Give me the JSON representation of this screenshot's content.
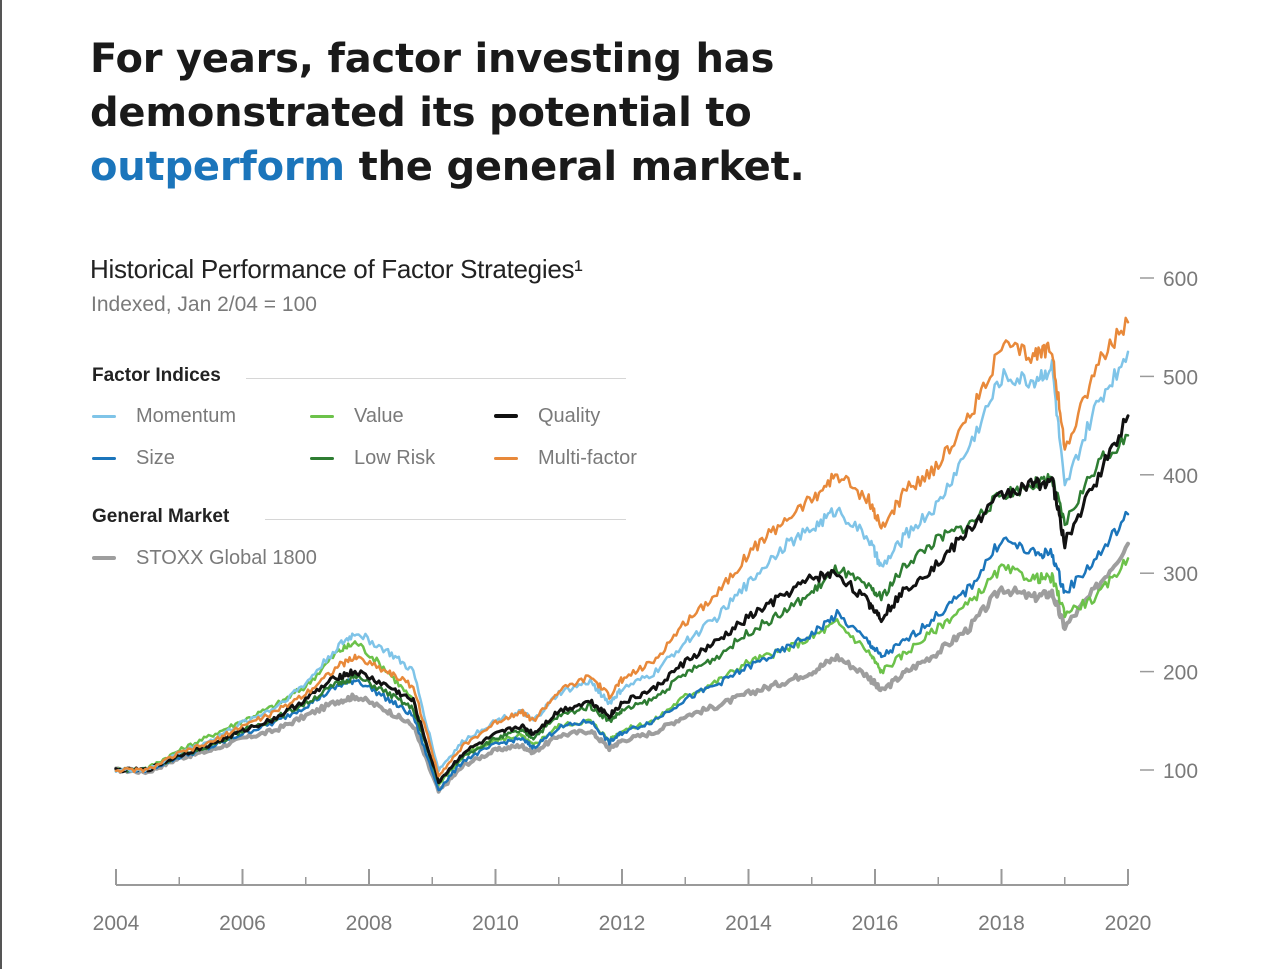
{
  "headline": {
    "line1": "For years, factor investing has",
    "line2": "demonstrated its potential to",
    "accent": "outperform",
    "rest": " the general market."
  },
  "legend": {
    "factor_heading": "Factor Indices",
    "market_heading": "General Market"
  },
  "chart_data": {
    "type": "line",
    "title": "Historical Performance of Factor Strategies¹",
    "subtitle": "Indexed, Jan 2/04 = 100",
    "xlabel": "",
    "ylabel": "",
    "xlim": [
      2004,
      2020
    ],
    "ylim": [
      100,
      600
    ],
    "y_ticks": [
      100,
      200,
      300,
      400,
      500,
      600
    ],
    "x_ticks": [
      2004,
      2006,
      2008,
      2010,
      2012,
      2014,
      2016,
      2018,
      2020
    ],
    "x_ticks_minor": [
      2005,
      2007,
      2009,
      2011,
      2013,
      2015,
      2017,
      2019
    ],
    "grid": false,
    "legend_position": "top-left",
    "series": [
      {
        "name": "STOXX Global 1800",
        "group": "General Market",
        "color": "#9e9e9e",
        "width": 4,
        "points": [
          [
            2004,
            100
          ],
          [
            2004.5,
            98
          ],
          [
            2005,
            112
          ],
          [
            2005.5,
            120
          ],
          [
            2006,
            132
          ],
          [
            2006.5,
            140
          ],
          [
            2007,
            155
          ],
          [
            2007.5,
            170
          ],
          [
            2007.8,
            175
          ],
          [
            2008.3,
            160
          ],
          [
            2008.7,
            145
          ],
          [
            2009.1,
            78
          ],
          [
            2009.5,
            105
          ],
          [
            2010,
            120
          ],
          [
            2010.4,
            125
          ],
          [
            2010.6,
            118
          ],
          [
            2011,
            135
          ],
          [
            2011.5,
            140
          ],
          [
            2011.8,
            122
          ],
          [
            2012,
            130
          ],
          [
            2012.5,
            138
          ],
          [
            2013,
            155
          ],
          [
            2013.5,
            165
          ],
          [
            2014,
            178
          ],
          [
            2014.5,
            188
          ],
          [
            2015,
            200
          ],
          [
            2015.4,
            215
          ],
          [
            2015.9,
            195
          ],
          [
            2016.1,
            180
          ],
          [
            2016.5,
            200
          ],
          [
            2017,
            220
          ],
          [
            2017.5,
            245
          ],
          [
            2018,
            285
          ],
          [
            2018.5,
            275
          ],
          [
            2018.8,
            280
          ],
          [
            2019,
            245
          ],
          [
            2019.5,
            285
          ],
          [
            2020,
            330
          ]
        ]
      },
      {
        "name": "Value",
        "group": "Factor Indices",
        "color": "#6cc24a",
        "width": 2.5,
        "points": [
          [
            2004,
            100
          ],
          [
            2004.5,
            102
          ],
          [
            2005,
            120
          ],
          [
            2005.5,
            135
          ],
          [
            2006,
            150
          ],
          [
            2006.5,
            165
          ],
          [
            2007,
            185
          ],
          [
            2007.5,
            220
          ],
          [
            2007.8,
            230
          ],
          [
            2008.3,
            200
          ],
          [
            2008.7,
            170
          ],
          [
            2009.1,
            85
          ],
          [
            2009.5,
            115
          ],
          [
            2010,
            130
          ],
          [
            2010.4,
            135
          ],
          [
            2010.6,
            125
          ],
          [
            2011,
            145
          ],
          [
            2011.5,
            150
          ],
          [
            2011.8,
            130
          ],
          [
            2012,
            140
          ],
          [
            2012.5,
            150
          ],
          [
            2013,
            175
          ],
          [
            2013.5,
            190
          ],
          [
            2014,
            210
          ],
          [
            2014.5,
            220
          ],
          [
            2015,
            235
          ],
          [
            2015.4,
            250
          ],
          [
            2015.9,
            220
          ],
          [
            2016.1,
            200
          ],
          [
            2016.5,
            220
          ],
          [
            2017,
            245
          ],
          [
            2017.5,
            270
          ],
          [
            2018,
            305
          ],
          [
            2018.5,
            295
          ],
          [
            2018.8,
            295
          ],
          [
            2019,
            260
          ],
          [
            2019.5,
            275
          ],
          [
            2020,
            315
          ]
        ]
      },
      {
        "name": "Size",
        "group": "Factor Indices",
        "color": "#1b75bb",
        "width": 2.5,
        "points": [
          [
            2004,
            100
          ],
          [
            2004.5,
            100
          ],
          [
            2005,
            113
          ],
          [
            2005.5,
            123
          ],
          [
            2006,
            137
          ],
          [
            2006.5,
            148
          ],
          [
            2007,
            165
          ],
          [
            2007.5,
            185
          ],
          [
            2007.8,
            192
          ],
          [
            2008.3,
            172
          ],
          [
            2008.7,
            155
          ],
          [
            2009.1,
            80
          ],
          [
            2009.5,
            110
          ],
          [
            2010,
            126
          ],
          [
            2010.4,
            132
          ],
          [
            2010.6,
            123
          ],
          [
            2011,
            143
          ],
          [
            2011.5,
            150
          ],
          [
            2011.8,
            128
          ],
          [
            2012,
            138
          ],
          [
            2012.5,
            150
          ],
          [
            2013,
            172
          ],
          [
            2013.5,
            187
          ],
          [
            2014,
            205
          ],
          [
            2014.5,
            220
          ],
          [
            2015,
            238
          ],
          [
            2015.4,
            258
          ],
          [
            2015.9,
            230
          ],
          [
            2016.1,
            215
          ],
          [
            2016.5,
            232
          ],
          [
            2017,
            258
          ],
          [
            2017.5,
            285
          ],
          [
            2018,
            335
          ],
          [
            2018.5,
            320
          ],
          [
            2018.8,
            320
          ],
          [
            2019,
            280
          ],
          [
            2019.5,
            315
          ],
          [
            2020,
            360
          ]
        ]
      },
      {
        "name": "Low Risk",
        "group": "Factor Indices",
        "color": "#2e7d32",
        "width": 2.5,
        "points": [
          [
            2004,
            100
          ],
          [
            2004.5,
            101
          ],
          [
            2005,
            114
          ],
          [
            2005.5,
            125
          ],
          [
            2006,
            140
          ],
          [
            2006.5,
            152
          ],
          [
            2007,
            168
          ],
          [
            2007.5,
            188
          ],
          [
            2007.8,
            195
          ],
          [
            2008.3,
            178
          ],
          [
            2008.7,
            162
          ],
          [
            2009.1,
            88
          ],
          [
            2009.5,
            115
          ],
          [
            2010,
            132
          ],
          [
            2010.4,
            140
          ],
          [
            2010.6,
            133
          ],
          [
            2011,
            155
          ],
          [
            2011.5,
            165
          ],
          [
            2011.8,
            150
          ],
          [
            2012,
            160
          ],
          [
            2012.5,
            172
          ],
          [
            2013,
            198
          ],
          [
            2013.5,
            215
          ],
          [
            2014,
            240
          ],
          [
            2014.5,
            258
          ],
          [
            2015,
            280
          ],
          [
            2015.4,
            305
          ],
          [
            2015.9,
            285
          ],
          [
            2016.1,
            275
          ],
          [
            2016.5,
            310
          ],
          [
            2017,
            335
          ],
          [
            2017.5,
            350
          ],
          [
            2018,
            380
          ],
          [
            2018.5,
            390
          ],
          [
            2018.8,
            395
          ],
          [
            2019,
            350
          ],
          [
            2019.5,
            410
          ],
          [
            2020,
            440
          ]
        ]
      },
      {
        "name": "Quality",
        "group": "Factor Indices",
        "color": "#111111",
        "width": 3,
        "points": [
          [
            2004,
            100
          ],
          [
            2004.5,
            100
          ],
          [
            2005,
            115
          ],
          [
            2005.5,
            126
          ],
          [
            2006,
            140
          ],
          [
            2006.5,
            152
          ],
          [
            2007,
            172
          ],
          [
            2007.5,
            195
          ],
          [
            2007.8,
            200
          ],
          [
            2008.3,
            185
          ],
          [
            2008.7,
            170
          ],
          [
            2009.1,
            88
          ],
          [
            2009.5,
            118
          ],
          [
            2010,
            136
          ],
          [
            2010.4,
            145
          ],
          [
            2010.6,
            137
          ],
          [
            2011,
            160
          ],
          [
            2011.5,
            170
          ],
          [
            2011.8,
            155
          ],
          [
            2012,
            168
          ],
          [
            2012.5,
            182
          ],
          [
            2013,
            210
          ],
          [
            2013.5,
            230
          ],
          [
            2014,
            255
          ],
          [
            2014.5,
            275
          ],
          [
            2015,
            295
          ],
          [
            2015.4,
            300
          ],
          [
            2015.9,
            270
          ],
          [
            2016.1,
            255
          ],
          [
            2016.5,
            285
          ],
          [
            2017,
            310
          ],
          [
            2017.5,
            345
          ],
          [
            2018,
            380
          ],
          [
            2018.5,
            390
          ],
          [
            2018.8,
            395
          ],
          [
            2019,
            330
          ],
          [
            2019.5,
            395
          ],
          [
            2020,
            460
          ]
        ]
      },
      {
        "name": "Momentum",
        "group": "Factor Indices",
        "color": "#7fc4e8",
        "width": 2.5,
        "points": [
          [
            2004,
            100
          ],
          [
            2004.5,
            100
          ],
          [
            2005,
            118
          ],
          [
            2005.5,
            130
          ],
          [
            2006,
            148
          ],
          [
            2006.5,
            163
          ],
          [
            2007,
            188
          ],
          [
            2007.5,
            225
          ],
          [
            2007.8,
            240
          ],
          [
            2008.3,
            220
          ],
          [
            2008.7,
            200
          ],
          [
            2009.1,
            100
          ],
          [
            2009.5,
            130
          ],
          [
            2010,
            150
          ],
          [
            2010.4,
            160
          ],
          [
            2010.6,
            150
          ],
          [
            2011,
            178
          ],
          [
            2011.5,
            190
          ],
          [
            2011.8,
            168
          ],
          [
            2012,
            182
          ],
          [
            2012.5,
            198
          ],
          [
            2013,
            230
          ],
          [
            2013.5,
            255
          ],
          [
            2014,
            290
          ],
          [
            2014.5,
            325
          ],
          [
            2015,
            345
          ],
          [
            2015.4,
            365
          ],
          [
            2015.9,
            335
          ],
          [
            2016.1,
            305
          ],
          [
            2016.5,
            340
          ],
          [
            2017,
            370
          ],
          [
            2017.5,
            430
          ],
          [
            2018,
            500
          ],
          [
            2018.5,
            495
          ],
          [
            2018.8,
            510
          ],
          [
            2019,
            385
          ],
          [
            2019.5,
            470
          ],
          [
            2020,
            525
          ]
        ]
      },
      {
        "name": "Multi-factor",
        "group": "Factor Indices",
        "color": "#e8893a",
        "width": 2.5,
        "points": [
          [
            2004,
            100
          ],
          [
            2004.5,
            100
          ],
          [
            2005,
            117
          ],
          [
            2005.5,
            128
          ],
          [
            2006,
            145
          ],
          [
            2006.5,
            158
          ],
          [
            2007,
            178
          ],
          [
            2007.5,
            205
          ],
          [
            2007.8,
            215
          ],
          [
            2008.3,
            200
          ],
          [
            2008.7,
            185
          ],
          [
            2009.1,
            95
          ],
          [
            2009.5,
            125
          ],
          [
            2010,
            148
          ],
          [
            2010.4,
            160
          ],
          [
            2010.6,
            150
          ],
          [
            2011,
            180
          ],
          [
            2011.5,
            195
          ],
          [
            2011.8,
            175
          ],
          [
            2012,
            192
          ],
          [
            2012.5,
            210
          ],
          [
            2013,
            250
          ],
          [
            2013.5,
            280
          ],
          [
            2014,
            320
          ],
          [
            2014.5,
            350
          ],
          [
            2015,
            375
          ],
          [
            2015.4,
            400
          ],
          [
            2015.9,
            375
          ],
          [
            2016.1,
            345
          ],
          [
            2016.5,
            385
          ],
          [
            2017,
            410
          ],
          [
            2017.5,
            460
          ],
          [
            2018,
            530
          ],
          [
            2018.5,
            520
          ],
          [
            2018.8,
            530
          ],
          [
            2019,
            425
          ],
          [
            2019.5,
            510
          ],
          [
            2020,
            555
          ]
        ]
      }
    ]
  }
}
